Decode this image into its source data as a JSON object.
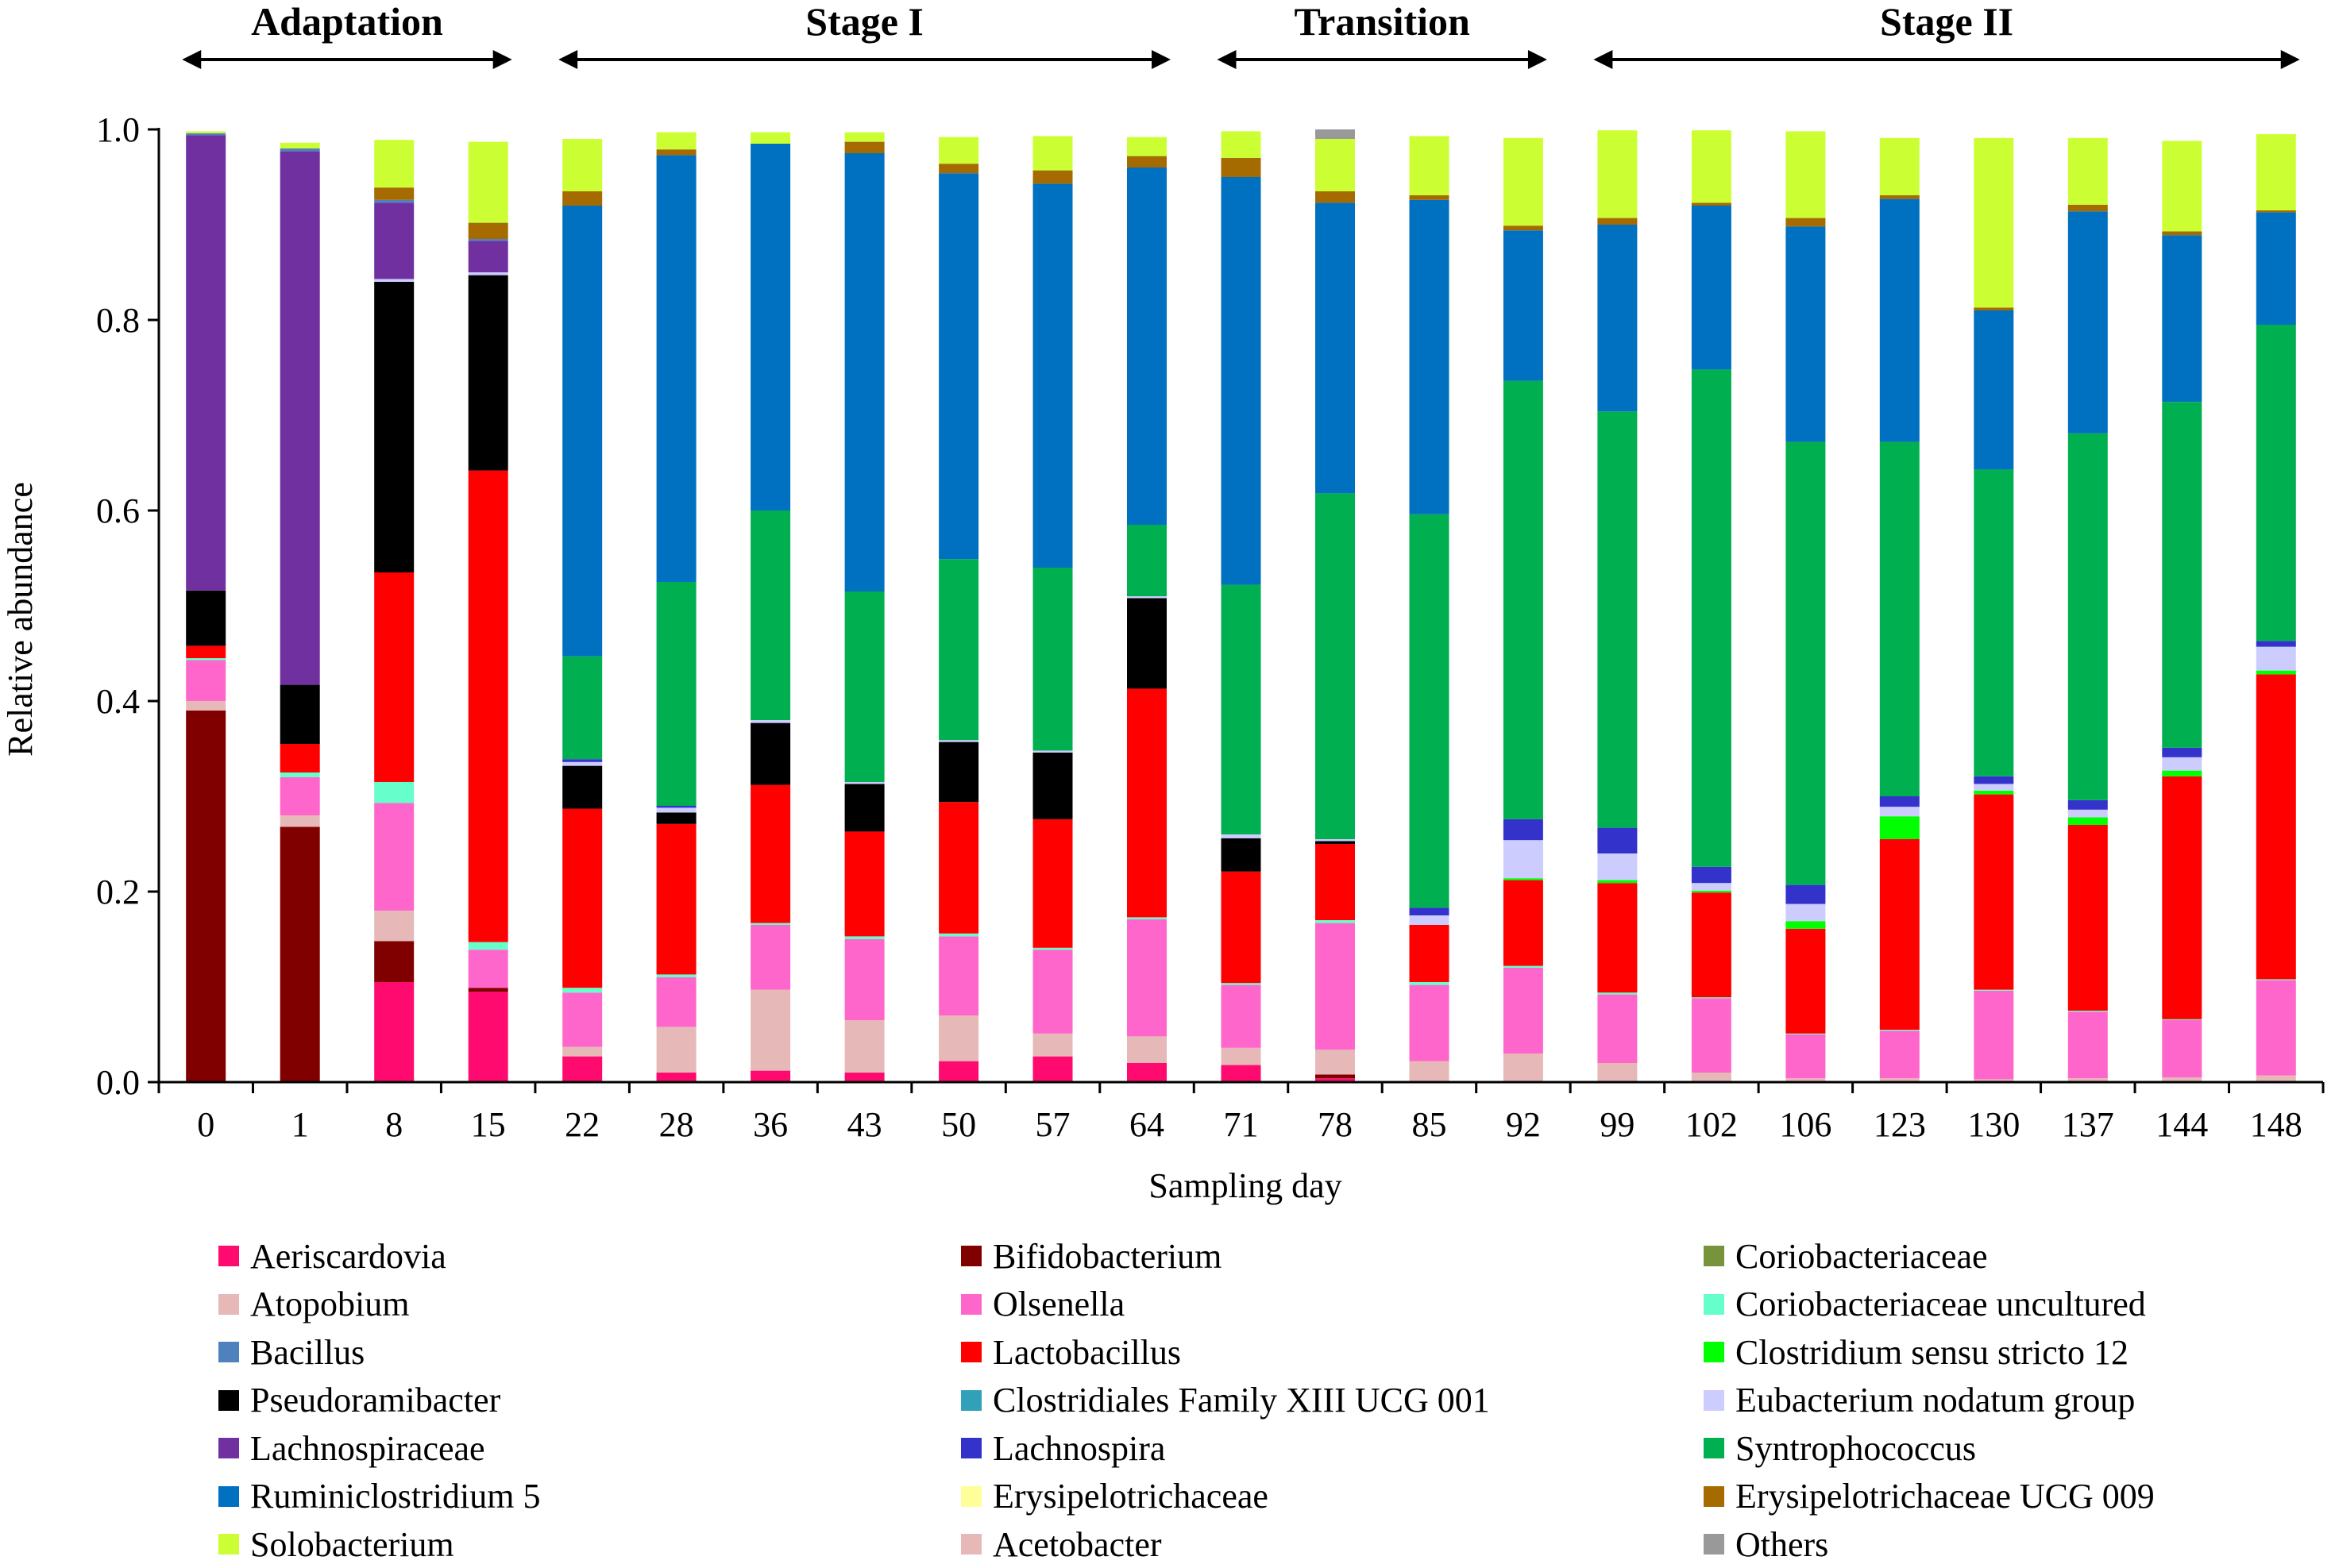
{
  "chart_data": {
    "type": "stacked-bar",
    "xlabel": "Sampling day",
    "ylabel": "Relative abundance",
    "ylim": [
      0,
      1.0
    ],
    "yticks": [
      "0.0",
      "0.2",
      "0.4",
      "0.6",
      "0.8",
      "1.0"
    ],
    "categories": [
      "0",
      "1",
      "8",
      "15",
      "22",
      "28",
      "36",
      "43",
      "50",
      "57",
      "64",
      "71",
      "78",
      "85",
      "92",
      "99",
      "102",
      "106",
      "123",
      "130",
      "137",
      "144",
      "148"
    ],
    "stages": [
      {
        "label": "Adaptation",
        "from": 0,
        "to": 3
      },
      {
        "label": "Stage I",
        "from": 4,
        "to": 10
      },
      {
        "label": "Transition",
        "from": 11,
        "to": 14
      },
      {
        "label": "Stage II",
        "from": 15,
        "to": 22
      }
    ],
    "series": [
      {
        "name": "Aeriscardovia",
        "color": "#ff0a6e",
        "values": [
          0,
          0,
          0.105,
          0.095,
          0.027,
          0.01,
          0.012,
          0.01,
          0.022,
          0.027,
          0.02,
          0.018,
          0.004,
          0,
          0,
          0,
          0,
          0,
          0,
          0,
          0,
          0,
          0
        ]
      },
      {
        "name": "Bifidobacterium",
        "color": "#800000",
        "values": [
          0.39,
          0.268,
          0.043,
          0.004,
          0,
          0,
          0,
          0,
          0,
          0,
          0,
          0,
          0.004,
          0,
          0,
          0,
          0,
          0,
          0,
          0,
          0,
          0,
          0
        ]
      },
      {
        "name": "Atopobium",
        "color": "#e6b8b8",
        "values": [
          0.01,
          0.012,
          0.032,
          0,
          0.01,
          0.048,
          0.085,
          0.055,
          0.048,
          0.024,
          0.028,
          0.018,
          0.026,
          0.022,
          0.03,
          0.02,
          0.01,
          0.004,
          0.004,
          0.003,
          0.004,
          0.005,
          0.007
        ]
      },
      {
        "name": "Olsenella",
        "color": "#ff66cc",
        "values": [
          0.043,
          0.04,
          0.113,
          0.04,
          0.057,
          0.052,
          0.068,
          0.085,
          0.083,
          0.088,
          0.123,
          0.066,
          0.133,
          0.08,
          0.09,
          0.072,
          0.078,
          0.046,
          0.05,
          0.093,
          0.07,
          0.06,
          0.1
        ]
      },
      {
        "name": "Coriobacteriaceae uncultured",
        "color": "#66ffcc",
        "values": [
          0.002,
          0.005,
          0.022,
          0.008,
          0.005,
          0.003,
          0.002,
          0.003,
          0.003,
          0.002,
          0.002,
          0.002,
          0.003,
          0.003,
          0.002,
          0.002,
          0.001,
          0.001,
          0.001,
          0.001,
          0.001,
          0.001,
          0.001
        ]
      },
      {
        "name": "Lactobacillus",
        "color": "#ff0000",
        "values": [
          0.013,
          0.03,
          0.22,
          0.495,
          0.188,
          0.158,
          0.145,
          0.11,
          0.138,
          0.135,
          0.24,
          0.117,
          0.08,
          0.06,
          0.09,
          0.115,
          0.11,
          0.11,
          0.2,
          0.205,
          0.195,
          0.255,
          0.32
        ]
      },
      {
        "name": "Clostridium sensu stricto 12",
        "color": "#00ff00",
        "values": [
          0,
          0,
          0,
          0,
          0,
          0,
          0,
          0,
          0,
          0,
          0,
          0,
          0,
          0,
          0.002,
          0.003,
          0.002,
          0.008,
          0.024,
          0.004,
          0.008,
          0.006,
          0.004
        ]
      },
      {
        "name": "Pseudoramibacter",
        "color": "#000000",
        "values": [
          0.058,
          0.062,
          0.305,
          0.205,
          0.045,
          0.012,
          0.065,
          0.05,
          0.063,
          0.07,
          0.095,
          0.035,
          0.003,
          0,
          0,
          0,
          0,
          0,
          0,
          0,
          0,
          0,
          0
        ]
      },
      {
        "name": "Eubacterium nodatum group",
        "color": "#ccccff",
        "values": [
          0,
          0,
          0.003,
          0.003,
          0.004,
          0.005,
          0.003,
          0.002,
          0.002,
          0.002,
          0.002,
          0.004,
          0.002,
          0.01,
          0.04,
          0.028,
          0.008,
          0.018,
          0.01,
          0.007,
          0.008,
          0.014,
          0.025
        ]
      },
      {
        "name": "Lachnospira",
        "color": "#3333cc",
        "values": [
          0,
          0,
          0,
          0,
          0.003,
          0.002,
          0,
          0,
          0,
          0,
          0,
          0,
          0,
          0.008,
          0.022,
          0.027,
          0.017,
          0.02,
          0.011,
          0.008,
          0.01,
          0.01,
          0.006
        ]
      },
      {
        "name": "Syntrophococcus",
        "color": "#00b050",
        "values": [
          0,
          0,
          0,
          0,
          0.108,
          0.235,
          0.22,
          0.2,
          0.19,
          0.192,
          0.075,
          0.262,
          0.363,
          0.413,
          0.46,
          0.437,
          0.522,
          0.465,
          0.372,
          0.322,
          0.385,
          0.363,
          0.332
        ]
      },
      {
        "name": "Ruminiclostridium 5",
        "color": "#0070c0",
        "values": [
          0,
          0,
          0,
          0,
          0.473,
          0.448,
          0.385,
          0.46,
          0.405,
          0.403,
          0.375,
          0.428,
          0.305,
          0.33,
          0.158,
          0.196,
          0.172,
          0.226,
          0.255,
          0.167,
          0.233,
          0.175,
          0.118
        ]
      },
      {
        "name": "Lachnospiraceae",
        "color": "#7030a0",
        "values": [
          0.478,
          0.56,
          0.08,
          0.033,
          0,
          0,
          0,
          0,
          0,
          0,
          0,
          0,
          0,
          0,
          0,
          0,
          0,
          0,
          0,
          0,
          0,
          0,
          0
        ]
      },
      {
        "name": "Bacillus",
        "color": "#4f81bd",
        "values": [
          0.002,
          0.003,
          0.003,
          0.002,
          0,
          0,
          0,
          0,
          0,
          0,
          0,
          0,
          0,
          0,
          0,
          0,
          0,
          0,
          0,
          0,
          0,
          0,
          0
        ]
      },
      {
        "name": "Erysipelotrichaceae UCG 009",
        "color": "#a56b00",
        "values": [
          0,
          0,
          0.013,
          0.017,
          0.015,
          0.006,
          0,
          0.012,
          0.01,
          0.014,
          0.012,
          0.02,
          0.012,
          0.005,
          0.005,
          0.007,
          0.003,
          0.009,
          0.004,
          0.003,
          0.007,
          0.004,
          0.002
        ]
      },
      {
        "name": "Solobacterium",
        "color": "#ccff33",
        "values": [
          0.002,
          0.006,
          0.05,
          0.085,
          0.055,
          0.018,
          0.012,
          0.01,
          0.028,
          0.036,
          0.02,
          0.028,
          0.055,
          0.062,
          0.092,
          0.092,
          0.076,
          0.091,
          0.06,
          0.178,
          0.07,
          0.095,
          0.08
        ]
      },
      {
        "name": "Others",
        "color": "#999999",
        "values": [
          0,
          0,
          0,
          0,
          0,
          0,
          0,
          0,
          0,
          0,
          0,
          0,
          0.01,
          0,
          0,
          0,
          0,
          0,
          0,
          0,
          0,
          0,
          0
        ]
      }
    ],
    "legend": [
      {
        "name": "Aeriscardovia",
        "color": "#ff0a6e"
      },
      {
        "name": "Bifidobacterium",
        "color": "#800000"
      },
      {
        "name": "Coriobacteriaceae",
        "color": "#77933c"
      },
      {
        "name": "Atopobium",
        "color": "#e6b8b8"
      },
      {
        "name": "Olsenella",
        "color": "#ff66cc"
      },
      {
        "name": "Coriobacteriaceae uncultured",
        "color": "#66ffcc"
      },
      {
        "name": "Bacillus",
        "color": "#4f81bd"
      },
      {
        "name": "Lactobacillus",
        "color": "#ff0000"
      },
      {
        "name": "Clostridium sensu stricto 12",
        "color": "#00ff00"
      },
      {
        "name": "Pseudoramibacter",
        "color": "#000000"
      },
      {
        "name": "Clostridiales Family XIII UCG 001",
        "color": "#31a0b8"
      },
      {
        "name": "Eubacterium nodatum group",
        "color": "#ccccff"
      },
      {
        "name": "Lachnospiraceae",
        "color": "#7030a0"
      },
      {
        "name": "Lachnospira",
        "color": "#3333cc"
      },
      {
        "name": "Syntrophococcus",
        "color": "#00b050"
      },
      {
        "name": "Ruminiclostridium 5",
        "color": "#0070c0"
      },
      {
        "name": "Erysipelotrichaceae",
        "color": "#ffff99"
      },
      {
        "name": "Erysipelotrichaceae UCG 009",
        "color": "#a56b00"
      },
      {
        "name": "Solobacterium",
        "color": "#ccff33"
      },
      {
        "name": "Acetobacter",
        "color": "#e6b8b8"
      },
      {
        "name": "Others",
        "color": "#999999"
      }
    ]
  }
}
